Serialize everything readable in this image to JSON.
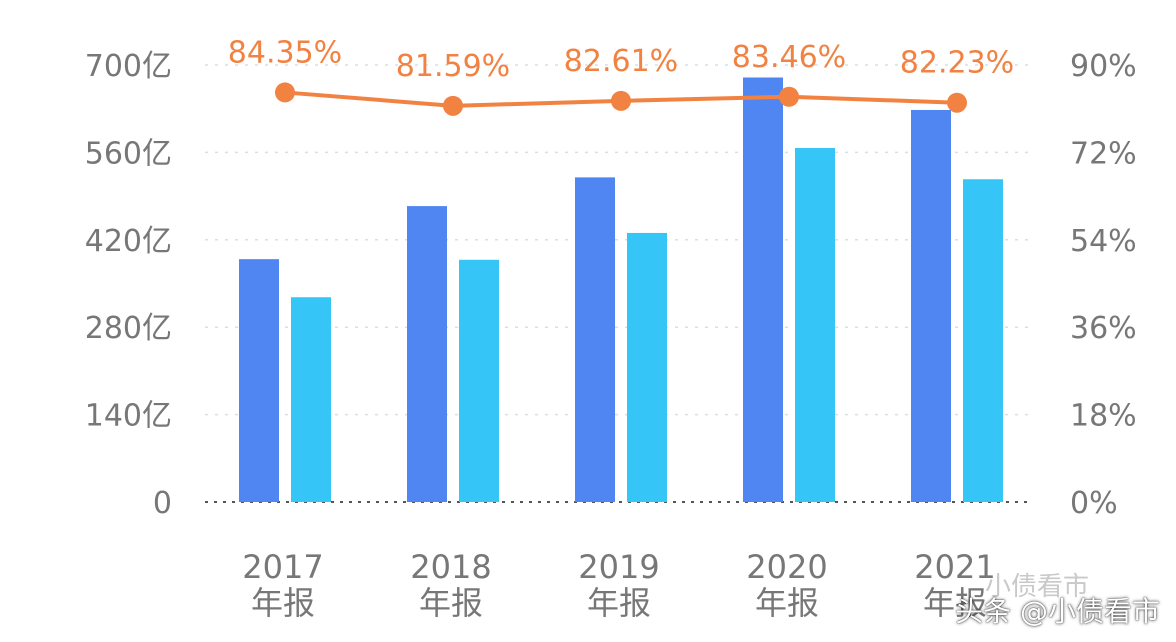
{
  "chart_data": {
    "type": "bar+line",
    "categories": [
      {
        "year": "2017",
        "label": "年报"
      },
      {
        "year": "2018",
        "label": "年报"
      },
      {
        "year": "2019",
        "label": "年报"
      },
      {
        "year": "2020",
        "label": "年报"
      },
      {
        "year": "2021",
        "label": "年报"
      }
    ],
    "left_axis": {
      "ticks": [
        "0",
        "140亿",
        "280亿",
        "420亿",
        "560亿",
        "700亿"
      ],
      "tick_values": [
        0,
        140,
        280,
        420,
        560,
        700
      ],
      "range": [
        0,
        700
      ]
    },
    "right_axis": {
      "ticks": [
        "0%",
        "18%",
        "36%",
        "54%",
        "72%",
        "90%"
      ],
      "tick_values": [
        0,
        18,
        36,
        54,
        72,
        90
      ],
      "range": [
        0,
        90
      ]
    },
    "bar_series": [
      {
        "name": "series_1",
        "color": "#5086f2",
        "values": [
          389,
          474,
          520,
          680,
          628
        ]
      },
      {
        "name": "series_2",
        "color": "#35c5f7",
        "values": [
          328,
          388,
          431,
          567,
          517
        ]
      }
    ],
    "line_series": {
      "color": "#f28242",
      "values": [
        84.35,
        81.59,
        82.61,
        83.46,
        82.23
      ],
      "labels": [
        "84.35%",
        "81.59%",
        "82.61%",
        "83.46%",
        "82.23%"
      ]
    }
  },
  "watermark": {
    "faint": "小债看市",
    "main": "头条 @小债看市"
  }
}
